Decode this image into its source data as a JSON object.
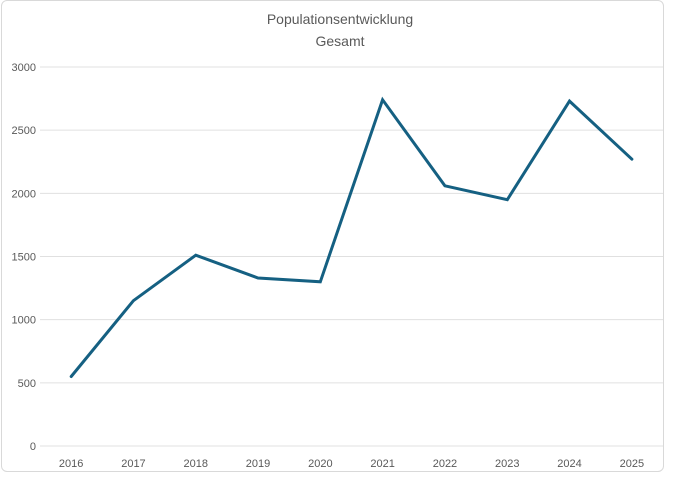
{
  "chart_data": {
    "type": "line",
    "title": "Populationsentwicklung",
    "subtitle": "Gesamt",
    "categories": [
      "2016",
      "2017",
      "2018",
      "2019",
      "2020",
      "2021",
      "2022",
      "2023",
      "2024",
      "2025"
    ],
    "series": [
      {
        "name": "Gesamt",
        "values": [
          550,
          1150,
          1510,
          1330,
          1300,
          2740,
          2060,
          1950,
          2730,
          2270
        ]
      }
    ],
    "xlabel": "",
    "ylabel": "",
    "ylim": [
      0,
      3000
    ],
    "yticks": [
      0,
      500,
      1000,
      1500,
      2000,
      2500,
      3000
    ],
    "grid": true,
    "legend": false
  },
  "colors": {
    "line": "#156082",
    "grid": "#E0E0E0",
    "axis_text": "#595959",
    "title_text": "#595959",
    "border": "#D9D9D9",
    "background": "#FFFFFF"
  }
}
